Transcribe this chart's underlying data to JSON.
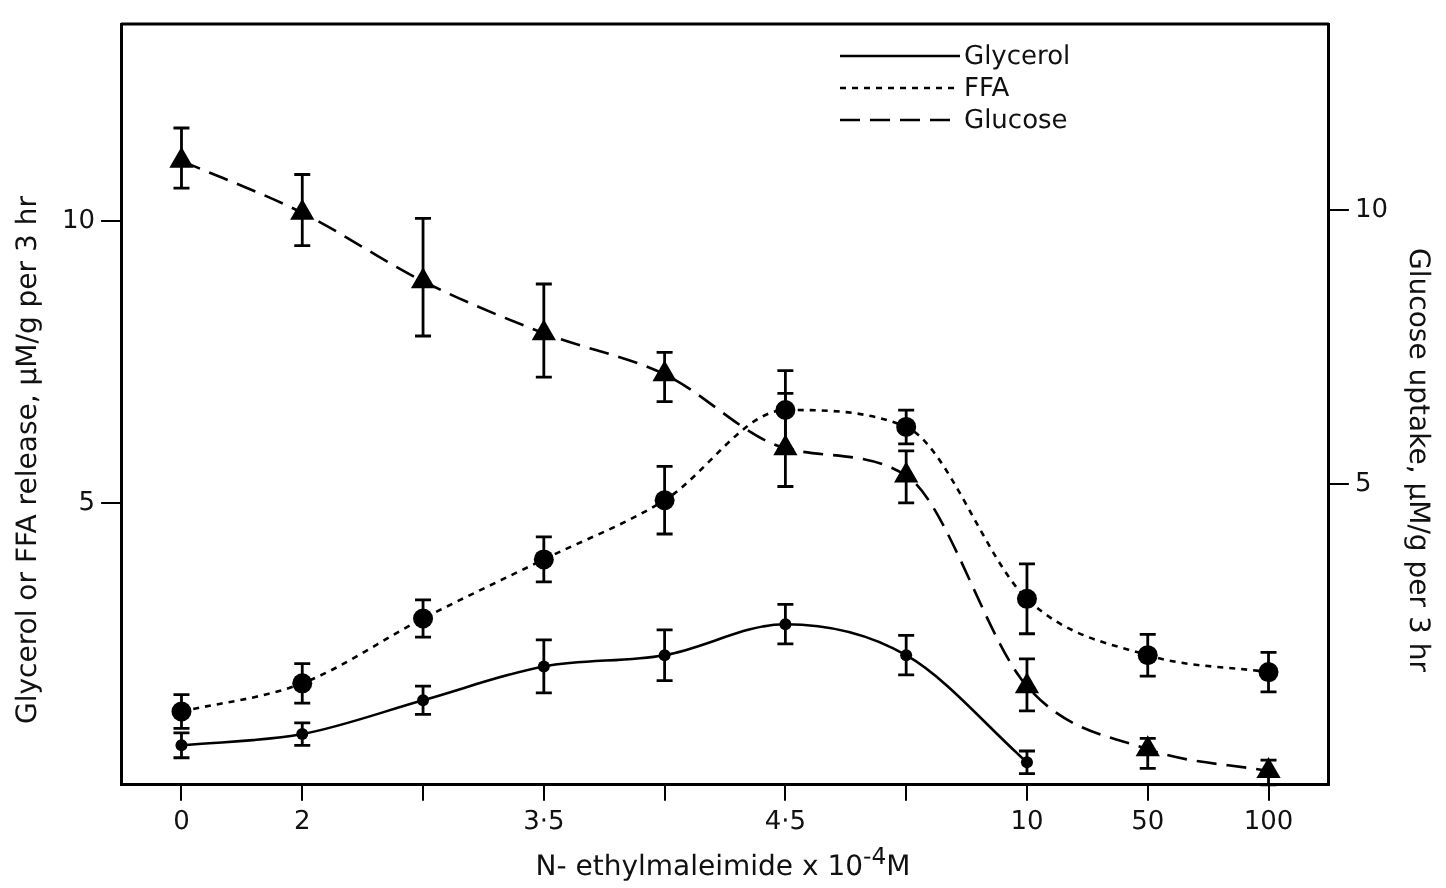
{
  "chart_data": {
    "type": "line",
    "xlabel": "N- ethylmaleimide x 10$^{-4}$M",
    "ylabel": "Glycerol or FFA release,  μM/g per 3 hr",
    "y2label": "Glucose uptake,  μM/g per 3 hr",
    "categories": [
      "0",
      "2",
      null,
      "3·5",
      null,
      "4·5",
      null,
      "10",
      "50",
      "100"
    ],
    "ylim": [
      0,
      13.5
    ],
    "yticks": [
      5,
      10
    ],
    "y2lim": [
      -0.5,
      13.4
    ],
    "y2ticks": [
      5,
      10
    ],
    "grid": false,
    "legend": "top right",
    "series": [
      {
        "name": "Glycerol",
        "color": "#000000",
        "line_style": "solid",
        "marker": "circle",
        "values": [
          0.7,
          0.9,
          1.5,
          2.1,
          2.3,
          2.85,
          2.3,
          0.4,
          null,
          null
        ],
        "errors": [
          0.22,
          0.2,
          0.25,
          0.47,
          0.45,
          0.35,
          0.35,
          0.2,
          null,
          null
        ]
      },
      {
        "name": "FFA",
        "color": "#000000",
        "line_style": "dotted",
        "marker": "circle",
        "values": [
          1.3,
          1.8,
          2.95,
          4.0,
          5.05,
          6.65,
          6.35,
          3.3,
          2.3,
          2.0
        ],
        "errors": [
          0.3,
          0.35,
          0.33,
          0.4,
          0.6,
          0.7,
          0.3,
          0.62,
          0.37,
          0.35
        ]
      },
      {
        "name": "Glucose",
        "color": "#000000",
        "line_style": "dashed",
        "marker": "triangle",
        "axis": "y2",
        "values": [
          10.9,
          9.95,
          8.7,
          7.75,
          7.0,
          5.65,
          5.15,
          1.3,
          0.15,
          -0.25
        ],
        "errors": [
          [
            10.4,
            11.5
          ],
          [
            9.35,
            10.65
          ],
          [
            7.7,
            9.85
          ],
          [
            6.95,
            8.65
          ],
          [
            6.5,
            7.4
          ],
          [
            4.95,
            6.65
          ],
          [
            4.65,
            5.6
          ],
          [
            0.85,
            1.8
          ],
          [
            -0.2,
            0.35
          ],
          [
            -0.5,
            -0.05
          ]
        ]
      }
    ]
  }
}
